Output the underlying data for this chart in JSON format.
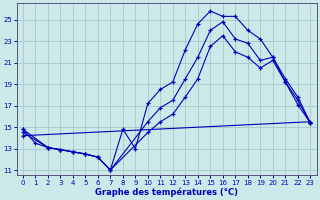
{
  "xlabel": "Graphe des températures (°C)",
  "bg_color": "#cce8e8",
  "grid_color": "#aacccc",
  "line_color": "#0000bb",
  "xlim": [
    -0.5,
    23.5
  ],
  "ylim": [
    10.5,
    26.5
  ],
  "yticks": [
    11,
    13,
    15,
    17,
    19,
    21,
    23,
    25
  ],
  "xticks": [
    0,
    1,
    2,
    3,
    4,
    5,
    6,
    7,
    8,
    9,
    10,
    11,
    12,
    13,
    14,
    15,
    16,
    17,
    18,
    19,
    20,
    21,
    22,
    23
  ],
  "curve1_x": [
    0,
    1,
    2,
    3,
    4,
    5,
    6,
    7,
    8,
    9,
    10,
    11,
    12,
    13,
    14,
    15,
    16,
    17,
    18,
    19,
    20,
    21,
    22,
    23
  ],
  "curve1_y": [
    14.8,
    13.5,
    13.1,
    12.9,
    12.7,
    12.5,
    12.2,
    11.0,
    14.8,
    13.0,
    17.2,
    18.5,
    19.2,
    22.2,
    24.6,
    25.8,
    25.3,
    25.3,
    24.0,
    23.2,
    21.5,
    19.2,
    17.1,
    15.4
  ],
  "curve2_x": [
    0,
    2,
    3,
    4,
    5,
    6,
    7,
    10,
    11,
    12,
    13,
    14,
    15,
    16,
    17,
    18,
    19,
    20,
    21,
    22,
    23
  ],
  "curve2_y": [
    14.8,
    13.1,
    12.9,
    12.7,
    12.5,
    12.2,
    11.0,
    15.5,
    16.8,
    17.5,
    19.5,
    21.5,
    24.0,
    24.8,
    23.2,
    22.8,
    21.2,
    21.5,
    19.5,
    17.8,
    15.4
  ],
  "curve3_x": [
    0,
    2,
    3,
    4,
    5,
    6,
    7,
    10,
    11,
    12,
    13,
    14,
    15,
    16,
    17,
    18,
    19,
    20,
    21,
    22,
    23
  ],
  "curve3_y": [
    14.5,
    13.1,
    12.9,
    12.7,
    12.5,
    12.2,
    11.0,
    14.5,
    15.5,
    16.2,
    17.8,
    19.5,
    22.5,
    23.5,
    22.0,
    21.5,
    20.5,
    21.2,
    19.2,
    17.5,
    15.4
  ],
  "curve4_x": [
    0,
    23
  ],
  "curve4_y": [
    14.2,
    15.5
  ]
}
